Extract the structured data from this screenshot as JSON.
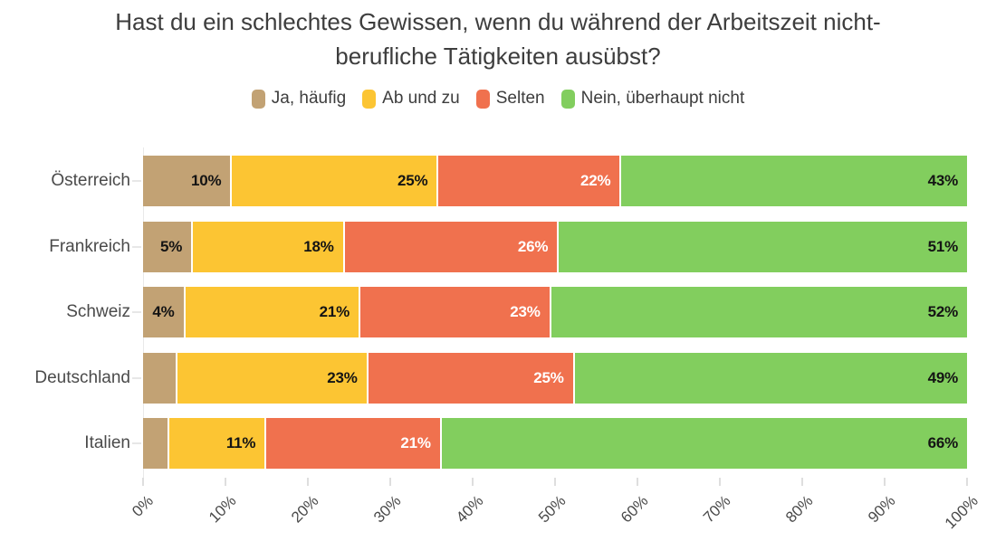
{
  "title_lines": [
    "Hast du ein schlechtes Gewissen, wenn du während der Arbeitszeit nicht-",
    "berufliche Tätigkeiten ausübst?"
  ],
  "chart_data": {
    "type": "bar",
    "orientation": "horizontal-stacked",
    "title": "Hast du ein schlechtes Gewissen, wenn du während der Arbeitszeit nicht-berufliche Tätigkeiten ausübst?",
    "legend_position": "top",
    "grid": "off",
    "xlim": [
      0,
      100
    ],
    "x_ticks": [
      "0%",
      "10%",
      "20%",
      "30%",
      "40%",
      "50%",
      "60%",
      "70%",
      "80%",
      "90%",
      "100%"
    ],
    "categories": [
      "Österreich",
      "Frankreich",
      "Schweiz",
      "Deutschland",
      "Italien"
    ],
    "series": [
      {
        "name": "Ja, häufig",
        "color": "#c2a274",
        "label_color": "#141414",
        "values": [
          10,
          5,
          4,
          3,
          2
        ],
        "labels": [
          "10%",
          "5%",
          "4%",
          "",
          ""
        ]
      },
      {
        "name": "Ab und zu",
        "color": "#fcc533",
        "label_color": "#141414",
        "values": [
          25,
          18,
          21,
          23,
          11
        ],
        "labels": [
          "25%",
          "18%",
          "21%",
          "23%",
          "11%"
        ]
      },
      {
        "name": "Selten",
        "color": "#f0714e",
        "label_color": "#ffffff",
        "values": [
          22,
          26,
          23,
          25,
          21
        ],
        "labels": [
          "22%",
          "26%",
          "23%",
          "25%",
          "21%"
        ]
      },
      {
        "name": "Nein, überhaupt nicht",
        "color": "#82ce5e",
        "label_color": "#141414",
        "values": [
          43,
          51,
          52,
          49,
          66
        ],
        "labels": [
          "43%",
          "51%",
          "52%",
          "49%",
          "66%"
        ]
      }
    ]
  }
}
